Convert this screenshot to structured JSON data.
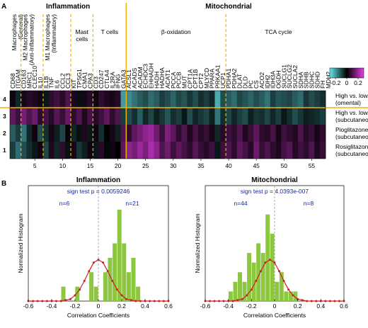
{
  "chart_data": [
    {
      "type": "heatmap",
      "panel": "A",
      "groups": [
        {
          "label": "Inflammation",
          "subgroups": [
            {
              "label": [
                "Macrophages",
                "(General)"
              ],
              "rotated": true,
              "genes": [
                "CD68",
                "ITGAM"
              ]
            },
            {
              "label": [
                "M2 Macrophages",
                "(Anti-Inflammatory)"
              ],
              "rotated": true,
              "genes": [
                "CD163",
                "MRC1",
                "CLEC10",
                "IL10"
              ]
            },
            {
              "label": [
                "M1 Macrophages",
                "(Inflammatory)"
              ],
              "rotated": true,
              "genes": [
                "IL1B",
                "TNF",
                "IL6",
                "CCL2",
                "CCL3"
              ]
            },
            {
              "label": [
                "Mast",
                "cells"
              ],
              "rotated": false,
              "genes": [
                "KIT",
                "TPSG1",
                "CMA1",
                "CPA3"
              ]
            },
            {
              "label": [
                "T cells"
              ],
              "rotated": false,
              "genes": [
                "CD3",
                "CD247",
                "CTLA4",
                "IL2RA",
                "IFNG",
                "GATA3"
              ]
            }
          ]
        },
        {
          "label": "Mitochondrial",
          "subgroups": [
            {
              "label": [
                "β-oxidation"
              ],
              "rotated": false,
              "genes": [
                "ACSL1",
                "ACADS",
                "ACADM",
                "ECHDC3",
                "EHHADH",
                "HADH",
                "HADHA",
                "ACAT1",
                "PCCA",
                "PCCB",
                "MUT",
                "CPT1A",
                "CPT1B",
                "CPT2",
                "MLYCD",
                "PPARA",
                "PRKAA1",
                "UCP1"
              ]
            },
            {
              "label": [
                "TCA cycle"
              ],
              "rotated": false,
              "genes": [
                "PDHA1",
                "PDHA2",
                "DLAT",
                "DLD",
                "PC",
                "CS",
                "ACO2",
                "IDH2",
                "IDH3A",
                "OGDH",
                "SUCLG1",
                "SUCLG2",
                "SUCLA2",
                "SDHA",
                "SDHB",
                "SDHC",
                "SDHD",
                "FH",
                "MDH2"
              ]
            }
          ]
        }
      ],
      "rows": [
        {
          "number": 4,
          "labels": [
            "High vs. low HomaIR",
            "(omental)"
          ],
          "values": [
            0.02,
            -0.05,
            0.03,
            0.05,
            0.04,
            0.02,
            -0.03,
            0.06,
            0.08,
            0.05,
            0.1,
            0.04,
            -0.02,
            0.03,
            0.05,
            0.02,
            0.06,
            0.04,
            0.03,
            0.05,
            -0.2,
            -0.18,
            -0.15,
            -0.12,
            -0.1,
            -0.14,
            -0.12,
            -0.08,
            -0.1,
            -0.13,
            -0.09,
            -0.11,
            -0.07,
            -0.1,
            -0.06,
            -0.08,
            -0.05,
            -0.22,
            -0.1,
            -0.12,
            -0.14,
            -0.09,
            -0.11,
            -0.13,
            -0.1,
            -0.12,
            -0.15,
            -0.08,
            -0.11,
            -0.1,
            -0.09,
            -0.12,
            -0.14,
            -0.07,
            -0.1,
            -0.08,
            -0.06
          ]
        },
        {
          "number": 3,
          "labels": [
            "High vs. low HomaIR",
            "(subcutaneous)"
          ],
          "values": [
            0.12,
            0.08,
            0.15,
            0.1,
            0.14,
            0.06,
            0.09,
            0.05,
            0.11,
            0.07,
            0.13,
            0.06,
            0.1,
            0.04,
            0.09,
            0.05,
            0.08,
            0.12,
            0.06,
            0.1,
            -0.08,
            -0.1,
            -0.06,
            -0.12,
            -0.05,
            -0.09,
            -0.04,
            -0.07,
            -0.11,
            -0.06,
            -0.08,
            -0.03,
            -0.1,
            -0.05,
            -0.07,
            -0.09,
            -0.04,
            -0.15,
            -0.06,
            -0.09,
            -0.05,
            -0.08,
            -0.1,
            -0.04,
            -0.07,
            -0.06,
            -0.09,
            -0.05,
            -0.08,
            -0.03,
            -0.06,
            -0.1,
            -0.07,
            -0.04,
            -0.05,
            -0.06,
            -0.08
          ]
        },
        {
          "number": 2,
          "labels": [
            "Pioglitazone Treatment",
            "(subcutaneous)"
          ],
          "values": [
            -0.12,
            -0.08,
            -0.15,
            -0.05,
            0.02,
            -0.1,
            -0.06,
            0.03,
            -0.04,
            -0.09,
            0.01,
            -0.05,
            -0.02,
            0.04,
            -0.03,
            0.02,
            -0.06,
            0.0,
            0.03,
            -0.04,
            0.1,
            0.06,
            0.12,
            0.15,
            0.18,
            0.2,
            0.14,
            0.08,
            0.16,
            0.12,
            0.06,
            0.1,
            0.04,
            0.09,
            0.05,
            0.07,
            0.03,
            -0.05,
            0.05,
            0.08,
            0.06,
            0.1,
            0.04,
            0.07,
            0.12,
            0.06,
            0.05,
            0.09,
            0.03,
            0.08,
            0.06,
            0.04,
            0.1,
            0.05,
            0.07,
            0.03,
            0.06
          ]
        },
        {
          "number": 1,
          "labels": [
            "Rosiglitazone Treatment",
            "(subcutaneous)"
          ],
          "values": [
            -0.08,
            -0.14,
            -0.1,
            -0.06,
            -0.03,
            0.02,
            -0.09,
            0.04,
            -0.05,
            0.06,
            -0.02,
            0.03,
            -0.07,
            -0.04,
            0.02,
            -0.03,
            0.05,
            -0.01,
            0.02,
            0.0,
            0.12,
            0.18,
            0.15,
            0.2,
            0.16,
            0.22,
            0.18,
            0.1,
            0.14,
            0.08,
            0.12,
            0.09,
            0.06,
            0.11,
            0.07,
            0.05,
            0.08,
            -0.03,
            0.08,
            0.1,
            0.06,
            0.12,
            0.09,
            0.05,
            0.14,
            0.07,
            0.1,
            0.06,
            0.04,
            0.09,
            0.11,
            0.05,
            0.08,
            0.06,
            0.1,
            0.04,
            0.07
          ]
        }
      ],
      "xlim": [
        0.5,
        57.5
      ],
      "xticks": [
        5,
        10,
        15,
        20,
        25,
        30,
        35,
        40,
        45,
        50,
        55
      ],
      "clim": [
        -0.3,
        0.3
      ],
      "cticks": [
        -0.2,
        0,
        0.2
      ],
      "colormap": {
        "low": "#66e6ee",
        "mid": "#000000",
        "high": "#e83ce8"
      }
    },
    {
      "type": "histogram",
      "panel": "B",
      "title": "Inflammation",
      "annotation": "sign test p = 0.0059246",
      "n_left": "n=6",
      "n_right": "n=21",
      "xlabel": "Correlation Coefficients",
      "ylabel": "Normalized Histogram",
      "bins": [
        -0.6,
        -0.56,
        -0.52,
        -0.48,
        -0.44,
        -0.4,
        -0.36,
        -0.32,
        -0.28,
        -0.24,
        -0.2,
        -0.16,
        -0.12,
        -0.08,
        -0.04,
        0,
        0.04,
        0.08,
        0.12,
        0.16,
        0.2,
        0.24,
        0.28,
        0.32,
        0.36,
        0.4,
        0.44,
        0.48,
        0.52,
        0.56,
        0.6
      ],
      "counts": [
        0,
        0,
        0,
        0,
        0,
        0,
        0,
        0.15,
        0,
        0,
        0.15,
        0,
        0,
        0.3,
        0.15,
        0,
        0.3,
        0.45,
        0.6,
        0.95,
        0.6,
        0.3,
        0.45,
        0.15,
        0,
        0,
        0,
        0,
        0,
        0
      ],
      "color": "#8dc63f",
      "curve": {
        "color": "#cc2020",
        "x": [
          -0.6,
          -0.56,
          -0.52,
          -0.48,
          -0.44,
          -0.4,
          -0.36,
          -0.32,
          -0.28,
          -0.24,
          -0.2,
          -0.16,
          -0.12,
          -0.08,
          -0.04,
          0,
          0.04,
          0.08,
          0.12,
          0.16,
          0.2,
          0.24,
          0.28,
          0.32,
          0.36,
          0.4,
          0.44,
          0.48,
          0.52,
          0.56,
          0.6
        ],
        "values": [
          0,
          0,
          0,
          0,
          0,
          0,
          0,
          0,
          0.01,
          0.02,
          0.06,
          0.12,
          0.21,
          0.31,
          0.4,
          0.43,
          0.4,
          0.31,
          0.21,
          0.12,
          0.06,
          0.02,
          0.01,
          0,
          0,
          0,
          0,
          0,
          0,
          0,
          0
        ]
      },
      "reference_line": 0,
      "xlim": [
        -0.6,
        0.6
      ],
      "xticks": [
        -0.6,
        -0.4,
        -0.2,
        0,
        0.2,
        0.4,
        0.6
      ],
      "ylim": [
        0,
        1.2
      ]
    },
    {
      "type": "histogram",
      "title": "Mitochondrial",
      "annotation": "sign test p = 4.0393e-007",
      "n_left": "n=44",
      "n_right": "n=8",
      "xlabel": "Correlation Coefficients",
      "ylabel": "Normalized Histogram",
      "bins": [
        -0.6,
        -0.56,
        -0.52,
        -0.48,
        -0.44,
        -0.4,
        -0.36,
        -0.32,
        -0.28,
        -0.24,
        -0.2,
        -0.16,
        -0.12,
        -0.08,
        -0.04,
        0,
        0.04,
        0.08,
        0.12,
        0.16,
        0.2,
        0.24,
        0.28,
        0.32,
        0.36,
        0.4,
        0.44,
        0.48,
        0.52,
        0.56,
        0.6
      ],
      "counts": [
        0,
        0,
        0,
        0,
        0,
        0.1,
        0.2,
        0.3,
        0.2,
        0.5,
        0.4,
        0.6,
        0.5,
        0.9,
        0.7,
        0.2,
        0.3,
        0.1,
        0.1,
        0.1,
        0,
        0,
        0,
        0,
        0,
        0,
        0,
        0,
        0,
        0
      ],
      "color": "#8dc63f",
      "curve": {
        "color": "#cc2020",
        "x": [
          -0.6,
          -0.56,
          -0.52,
          -0.48,
          -0.44,
          -0.4,
          -0.36,
          -0.32,
          -0.28,
          -0.24,
          -0.2,
          -0.16,
          -0.12,
          -0.08,
          -0.04,
          0,
          0.04,
          0.08,
          0.12,
          0.16,
          0.2,
          0.24,
          0.28,
          0.32,
          0.36,
          0.4,
          0.44,
          0.48,
          0.52,
          0.56,
          0.6
        ],
        "values": [
          0,
          0,
          0,
          0,
          0,
          0,
          0,
          0.01,
          0.02,
          0.06,
          0.12,
          0.21,
          0.31,
          0.4,
          0.43,
          0.4,
          0.31,
          0.21,
          0.12,
          0.06,
          0.02,
          0.01,
          0,
          0,
          0,
          0,
          0,
          0,
          0,
          0,
          0
        ]
      },
      "reference_line": 0,
      "xlim": [
        -0.6,
        0.6
      ],
      "xticks": [
        -0.6,
        -0.4,
        -0.2,
        0,
        0.2,
        0.4,
        0.6
      ],
      "ylim": [
        0,
        1.2
      ]
    }
  ]
}
